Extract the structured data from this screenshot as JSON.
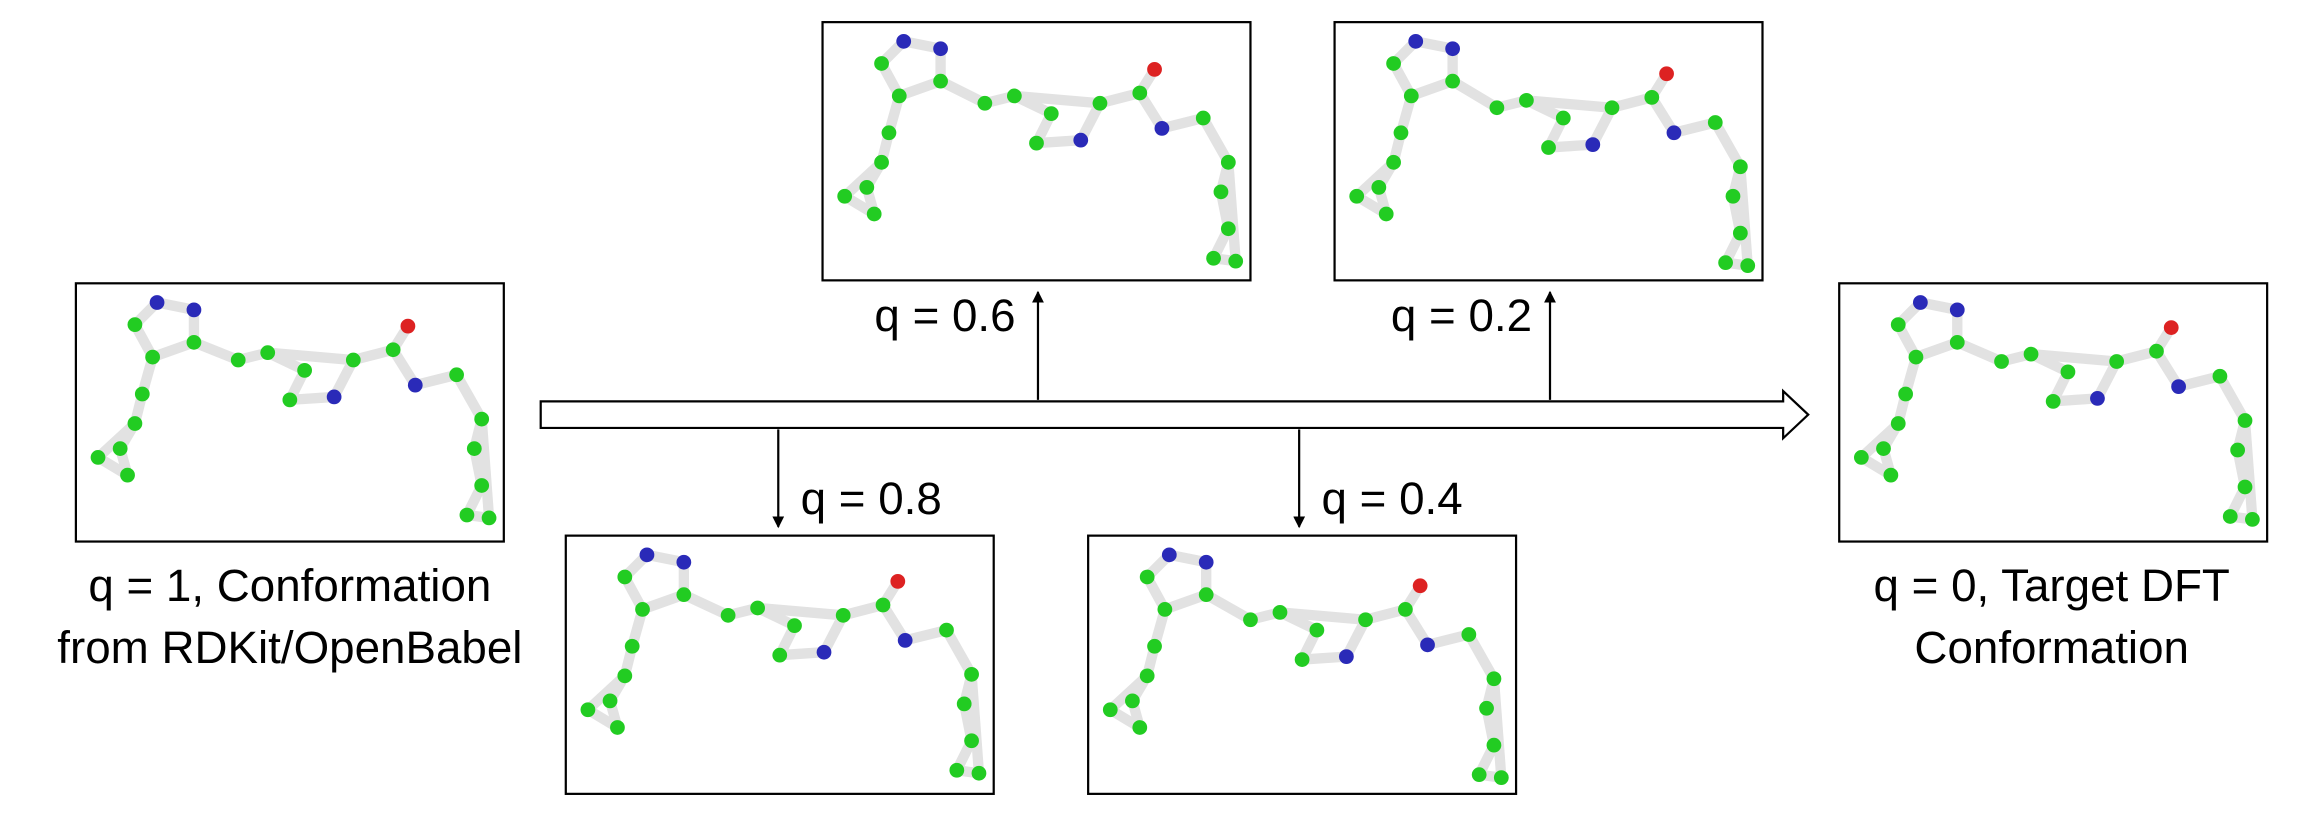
{
  "start": {
    "caption": [
      "q = 1, Conformation",
      "from RDKit/OpenBabel"
    ]
  },
  "intermediates": [
    {
      "label": "q = 0.8"
    },
    {
      "label": "q = 0.6"
    },
    {
      "label": "q = 0.4"
    },
    {
      "label": "q = 0.2"
    }
  ],
  "end": {
    "caption": [
      "q = 0, Target DFT",
      "Conformation"
    ]
  }
}
